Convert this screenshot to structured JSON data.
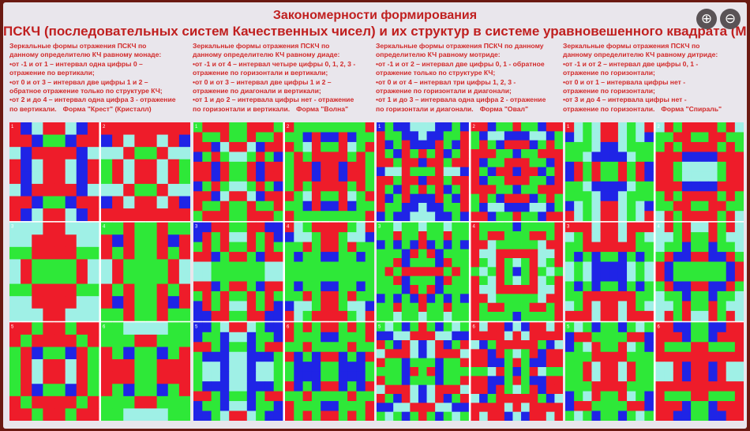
{
  "header": {
    "title_line1": "Закономерности формирования",
    "title_line2": "ПСКЧ (последовательных систем Качественных чисел) и их структур в системе уравновешенного квадрата (МК)"
  },
  "toolbar": {
    "zoom_in_icon": "magnifier-plus-icon",
    "zoom_out_icon": "magnifier-minus-icon",
    "zoom_in_glyph": "⊕",
    "zoom_out_glyph": "⊖"
  },
  "colors": {
    "red": "#ee1c2a",
    "green": "#2ee838",
    "blue": "#1f24e6",
    "cyan": "#9ff0e6",
    "separator": "#ffffff",
    "text": "#d22a2a",
    "background": "#6b1a12"
  },
  "columns": [
    {
      "lines": [
        "Зеркальные формы отражения ПСКЧ по",
        "данному определителю КЧ равному монаде:",
        "•от -1 и от 1 – интервал одна цифры 0 –",
        "отражение по вертикали;",
        "•от 0 и от 3 – интервал две цифры 1 и 2 –",
        "обратное отражение только по структуре КЧ;",
        "•от 2 и до 4 – интервал одна цифра 3 - отражение",
        "по вертикали."
      ],
      "form_label": "Форма \"Крест\" (Кристалл)",
      "tile_numbers": [
        "1",
        "2",
        "3",
        "4",
        "5",
        "6"
      ]
    },
    {
      "lines": [
        "Зеркальные формы отражения ПСКЧ по",
        "данному определителю КЧ равному диаде:",
        "•от -1 и от 4 – интервал четыре цифры 0, 1, 2, 3 -",
        "отражение по горизонтали и вертикали;",
        "•от 0 и от 3 – интервал две цифры 1 и 2 –",
        "отражение по диагонали и вертикали;",
        "•от 1 и до 2 – интервала цифры нет - отражение",
        "по горизонтали и вертикали."
      ],
      "form_label": "Форма \"Волна\"",
      "tile_numbers": [
        "1",
        "2",
        "3",
        "4",
        "5",
        "6"
      ]
    },
    {
      "lines": [
        "Зеркальные формы отражения ПСКЧ по данному",
        "определителю КЧ равному мотриде:",
        "•от -1 и от 2 – интервал две цифры 0, 1 - обратное",
        "отражение только по структуре КЧ;",
        "•от 0 и от 4 – интервал три цифры 1, 2, 3 -",
        "отражение по горизонтали и диагонали;",
        "•от 1 и до 3 – интервала одна цифра 2 - отражение",
        "по горизонтали и диагонали."
      ],
      "form_label": "Форма \"Овал\"",
      "tile_numbers": [
        "1",
        "2",
        "3",
        "4",
        "5",
        "6"
      ]
    },
    {
      "lines": [
        "Зеркальные формы отражения ПСКЧ по",
        "данному определителю КЧ равному дитриде:",
        "•от -1 и от 2 – интервал две цифры 0, 1 -",
        "отражение по горизонтали;",
        "•от 0 и от 1 – интервала цифры нет -",
        "отражение по горизонтали;",
        "•от 3 и до 4 – интервала цифры нет -",
        "отражение по горизонтали."
      ],
      "form_label": "Форма \"Спираль\"",
      "tile_numbers": [
        "1",
        "2",
        "3",
        "4",
        "5",
        "6"
      ]
    }
  ]
}
